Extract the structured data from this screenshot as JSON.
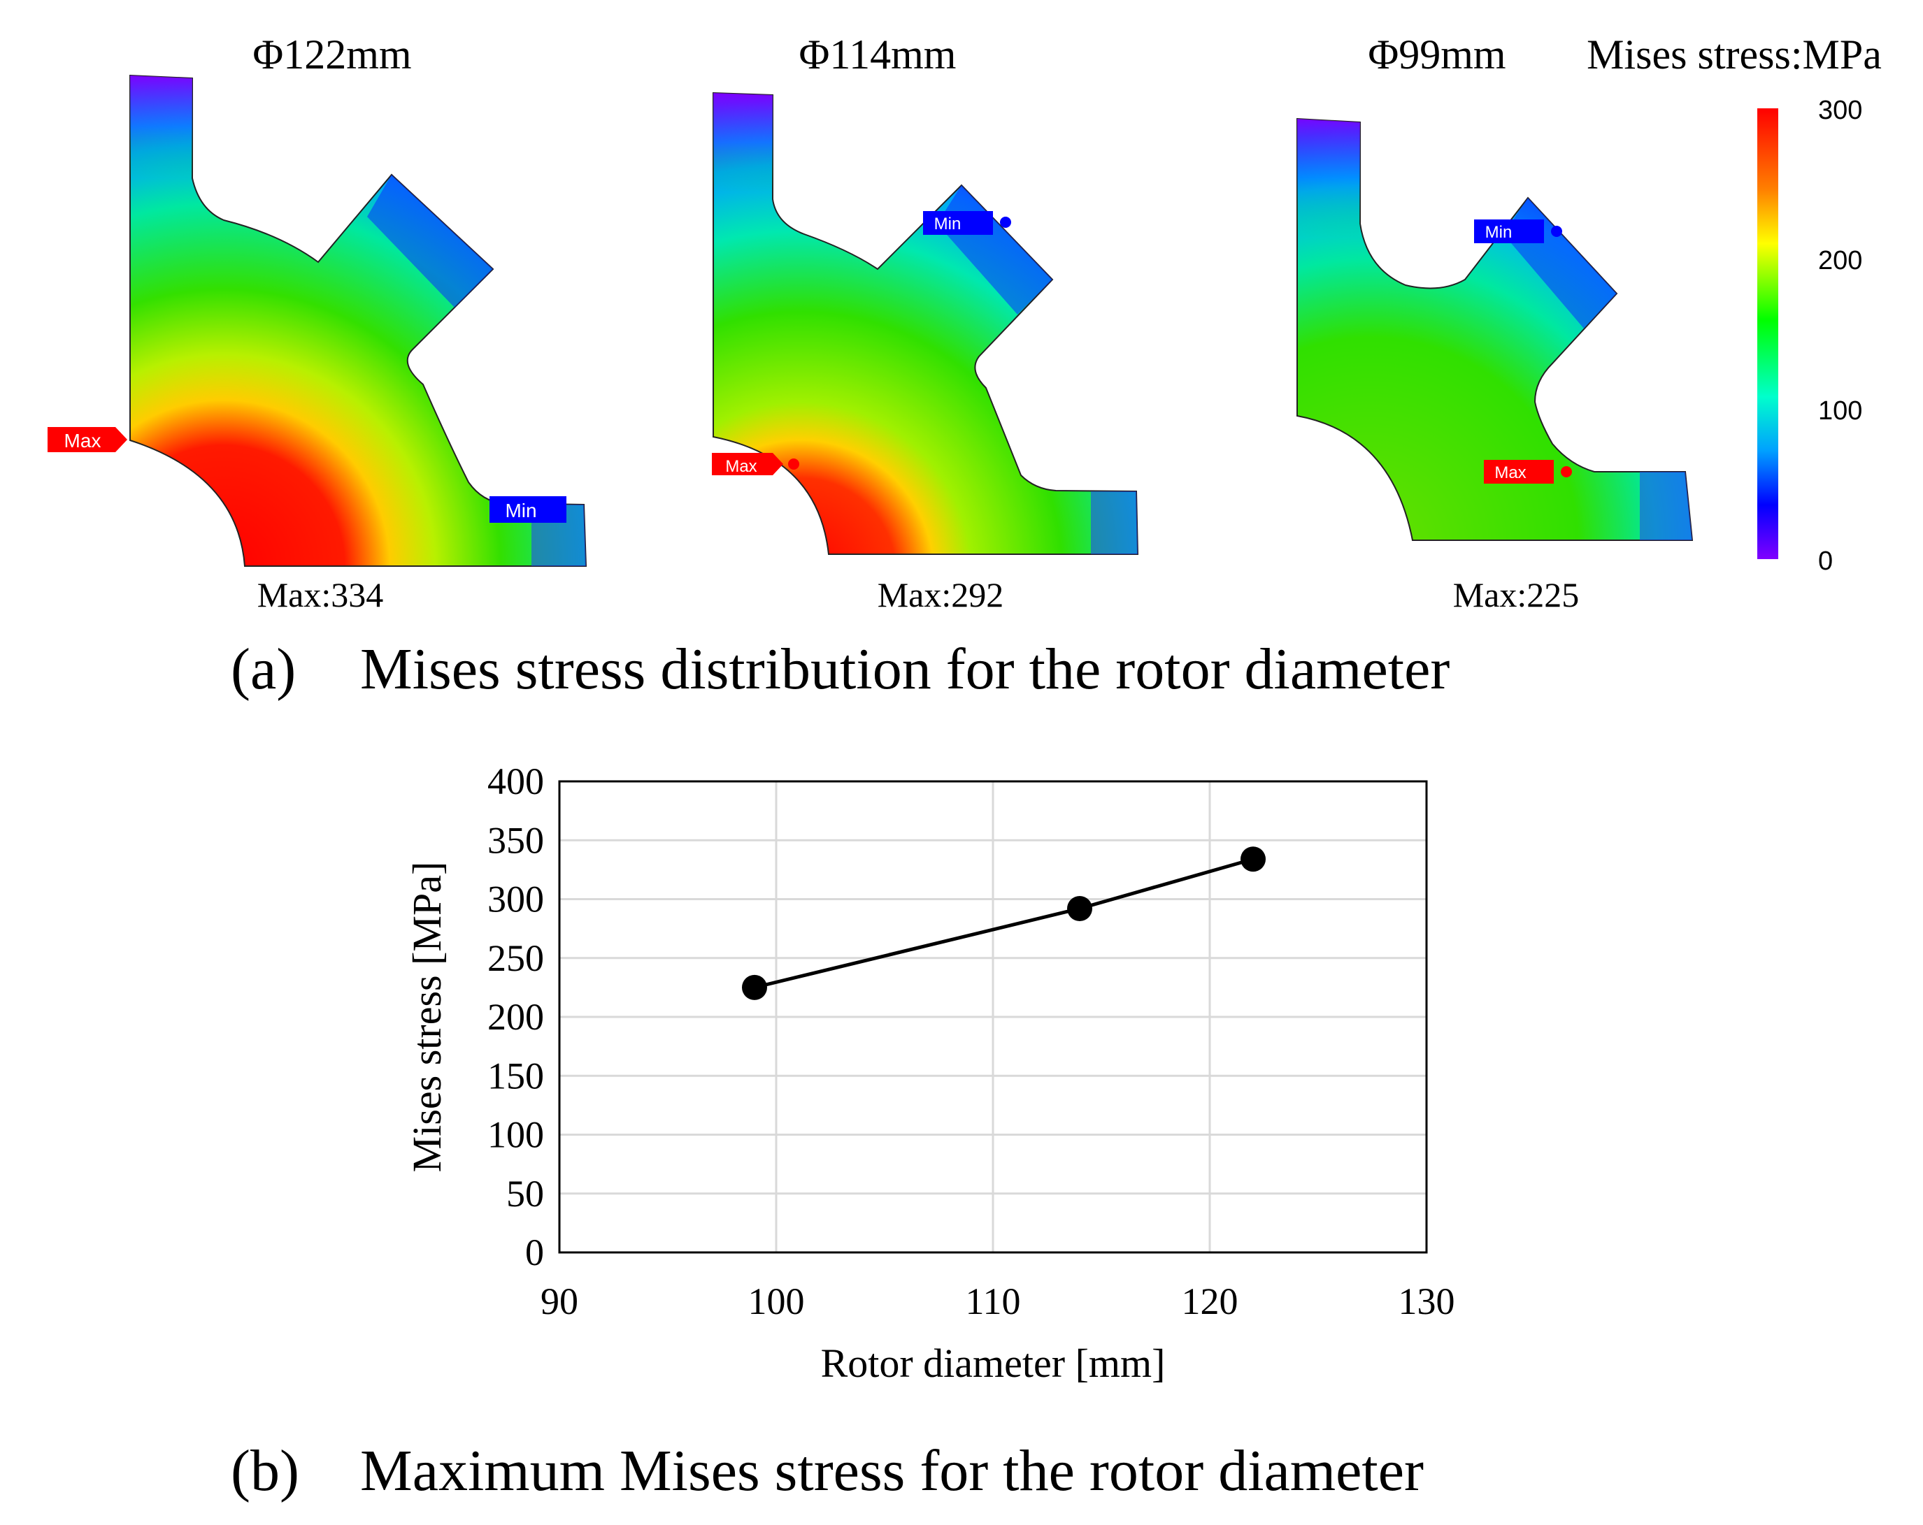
{
  "figure": {
    "panel_a": {
      "caption_label": "(a)",
      "caption_text": "Mises stress distribution for the rotor diameter",
      "colorbar": {
        "title": "Mises stress:MPa",
        "ticks": [
          "300",
          "200",
          "100",
          "0"
        ],
        "colors": [
          "#ff0000",
          "#ffff00",
          "#00ff00",
          "#00ffff",
          "#0000ff",
          "#8000ff"
        ]
      },
      "models": [
        {
          "title": "Φ122mm",
          "max_text": "Max:334",
          "max_tag": "Max",
          "min_tag": "Min"
        },
        {
          "title": "Φ114mm",
          "max_text": "Max:292",
          "max_tag": "Max",
          "min_tag": "Min"
        },
        {
          "title": "Φ99mm",
          "max_text": "Max:225",
          "max_tag": "Max",
          "min_tag": "Min"
        }
      ]
    },
    "panel_b": {
      "caption_label": "(b)",
      "caption_text": "Maximum Mises stress for the rotor diameter"
    }
  },
  "chart_data": {
    "type": "line",
    "title": "",
    "xlabel": "Rotor diameter [mm]",
    "ylabel": "Mises stress [MPa]",
    "xlim": [
      90,
      130
    ],
    "ylim": [
      0,
      400
    ],
    "xticks": [
      90,
      100,
      110,
      120,
      130
    ],
    "yticks": [
      0,
      50,
      100,
      150,
      200,
      250,
      300,
      350,
      400
    ],
    "grid": true,
    "series": [
      {
        "name": "Maximum Mises stress",
        "x": [
          99,
          114,
          122
        ],
        "y": [
          225,
          292,
          334
        ],
        "color": "#000000"
      }
    ]
  }
}
